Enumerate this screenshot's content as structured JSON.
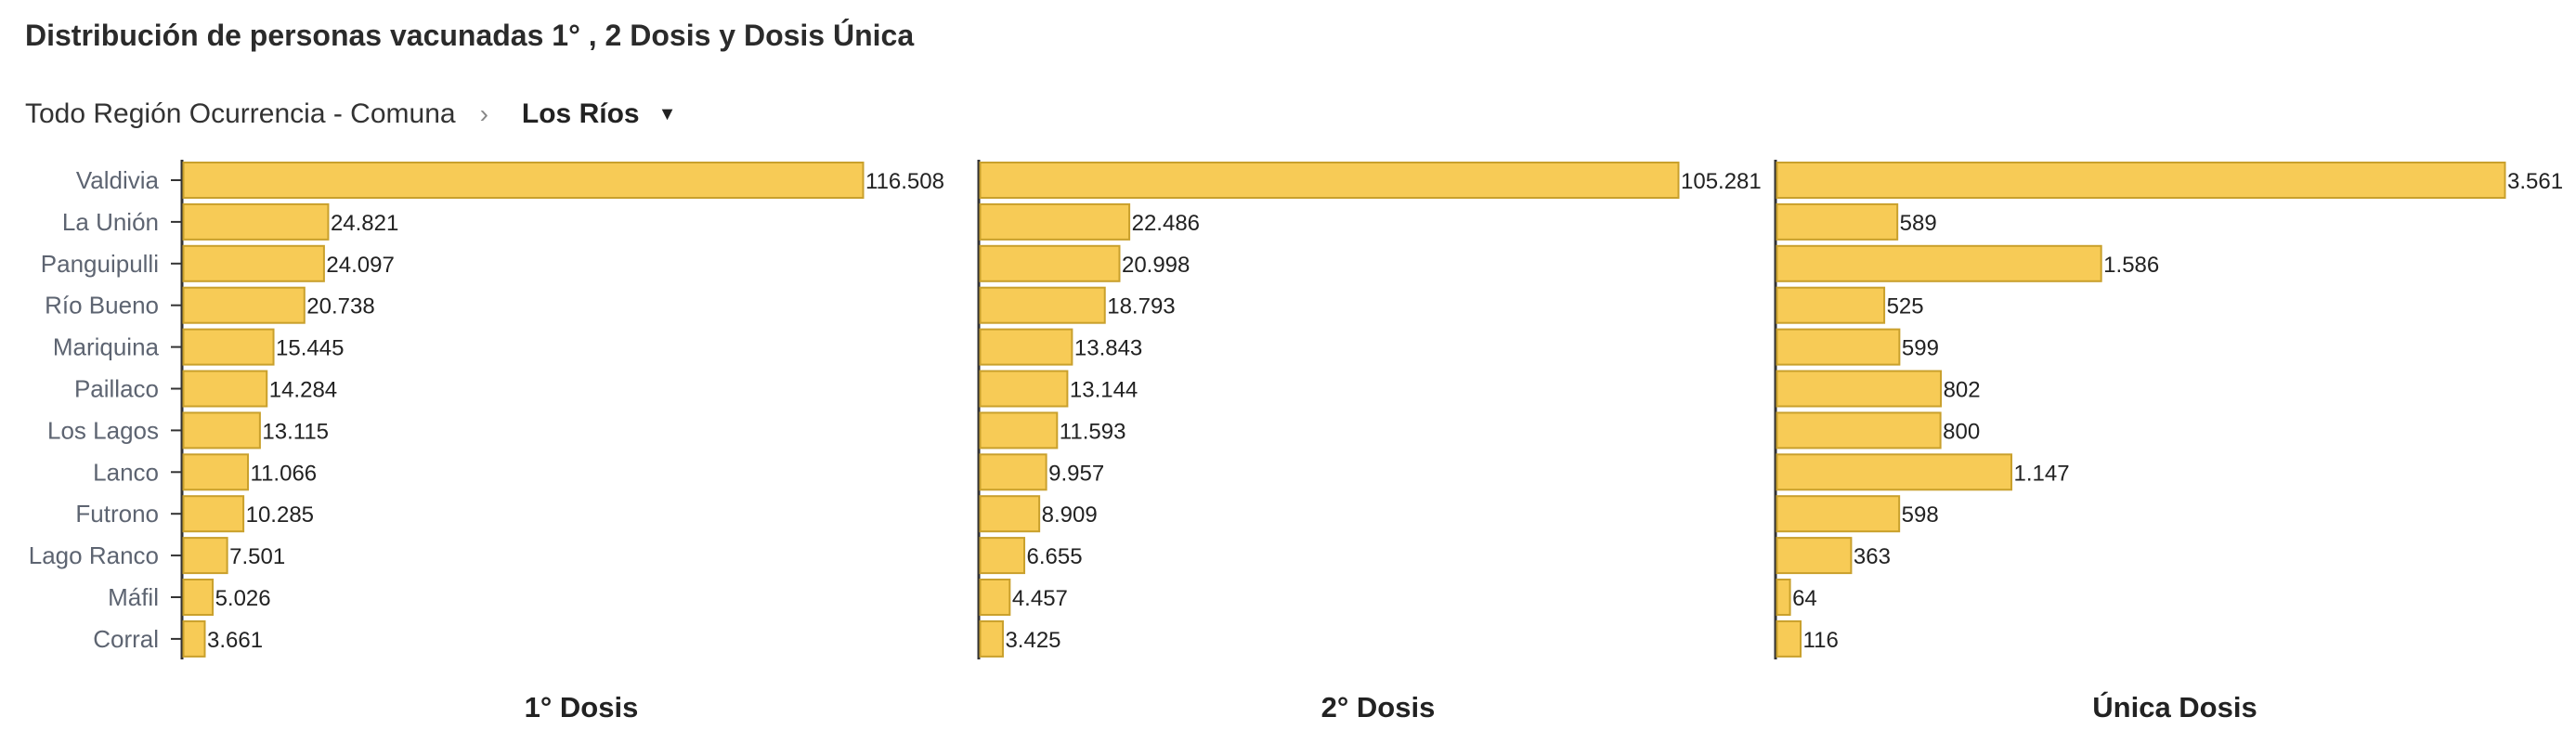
{
  "title": "Distribución de personas vacunadas 1° , 2 Dosis y Dosis Única",
  "breadcrumb": {
    "root": "Todo Región Ocurrencia - Comuna",
    "separator": "›",
    "current": "Los Ríos",
    "caret_icon": "caret-down-icon"
  },
  "chart_data": {
    "type": "bar",
    "orientation": "horizontal",
    "bar_color": "#f7cb56",
    "bar_border": "#c9a02c",
    "categories": [
      "Valdivia",
      "La Unión",
      "Panguipulli",
      "Río Bueno",
      "Mariquina",
      "Paillaco",
      "Los Lagos",
      "Lanco",
      "Futrono",
      "Lago Ranco",
      "Máfil",
      "Corral"
    ],
    "panels": [
      {
        "title": "1° Dosis",
        "values": [
          116508,
          24821,
          24097,
          20738,
          15445,
          14284,
          13115,
          11066,
          10285,
          7501,
          5026,
          3661
        ],
        "labels": [
          "116.508",
          "24.821",
          "24.097",
          "20.738",
          "15.445",
          "14.284",
          "13.115",
          "11.066",
          "10.285",
          "7.501",
          "5.026",
          "3.661"
        ]
      },
      {
        "title": "2° Dosis",
        "values": [
          105281,
          22486,
          20998,
          18793,
          13843,
          13144,
          11593,
          9957,
          8909,
          6655,
          4457,
          3425
        ],
        "labels": [
          "105.281",
          "22.486",
          "20.998",
          "18.793",
          "13.843",
          "13.144",
          "11.593",
          "9.957",
          "8.909",
          "6.655",
          "4.457",
          "3.425"
        ]
      },
      {
        "title": "Única Dosis",
        "values": [
          3561,
          589,
          1586,
          525,
          599,
          802,
          800,
          1147,
          598,
          363,
          64,
          116
        ],
        "labels": [
          "3.561",
          "589",
          "1.586",
          "525",
          "599",
          "802",
          "800",
          "1.147",
          "598",
          "363",
          "64",
          "116"
        ]
      }
    ],
    "grid": false
  }
}
